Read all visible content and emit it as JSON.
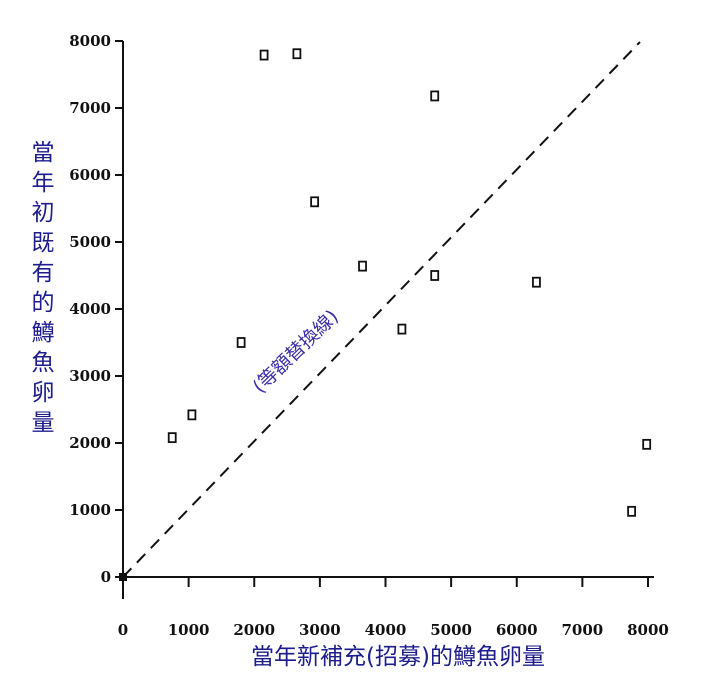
{
  "chart_data": {
    "type": "scatter",
    "xlabel": "當年新補充(招募)的鱒魚卵量",
    "ylabel": "當年初既有的鱒魚卵量",
    "xlim": [
      0,
      8000
    ],
    "ylim": [
      0,
      8000
    ],
    "x_ticks": [
      "0",
      "1000",
      "2000",
      "3000",
      "4000",
      "5000",
      "6000",
      "7000",
      "8000"
    ],
    "y_ticks": [
      "0",
      "1000",
      "2000",
      "3000",
      "4000",
      "5000",
      "6000",
      "7000",
      "8000"
    ],
    "points": [
      {
        "x": 750,
        "y": 2080
      },
      {
        "x": 1050,
        "y": 2420
      },
      {
        "x": 1800,
        "y": 3500
      },
      {
        "x": 2150,
        "y": 7790
      },
      {
        "x": 2650,
        "y": 7810
      },
      {
        "x": 2920,
        "y": 5600
      },
      {
        "x": 3650,
        "y": 4640
      },
      {
        "x": 4250,
        "y": 3700
      },
      {
        "x": 4750,
        "y": 7180
      },
      {
        "x": 4750,
        "y": 4500
      },
      {
        "x": 6300,
        "y": 4400
      },
      {
        "x": 7750,
        "y": 980
      },
      {
        "x": 7980,
        "y": 1980
      }
    ],
    "reference_line": {
      "label": "(等額替換線)",
      "style": "dashed",
      "from": [
        0,
        0
      ],
      "to": [
        8000,
        8000
      ]
    },
    "grid": false,
    "legend": "none"
  }
}
